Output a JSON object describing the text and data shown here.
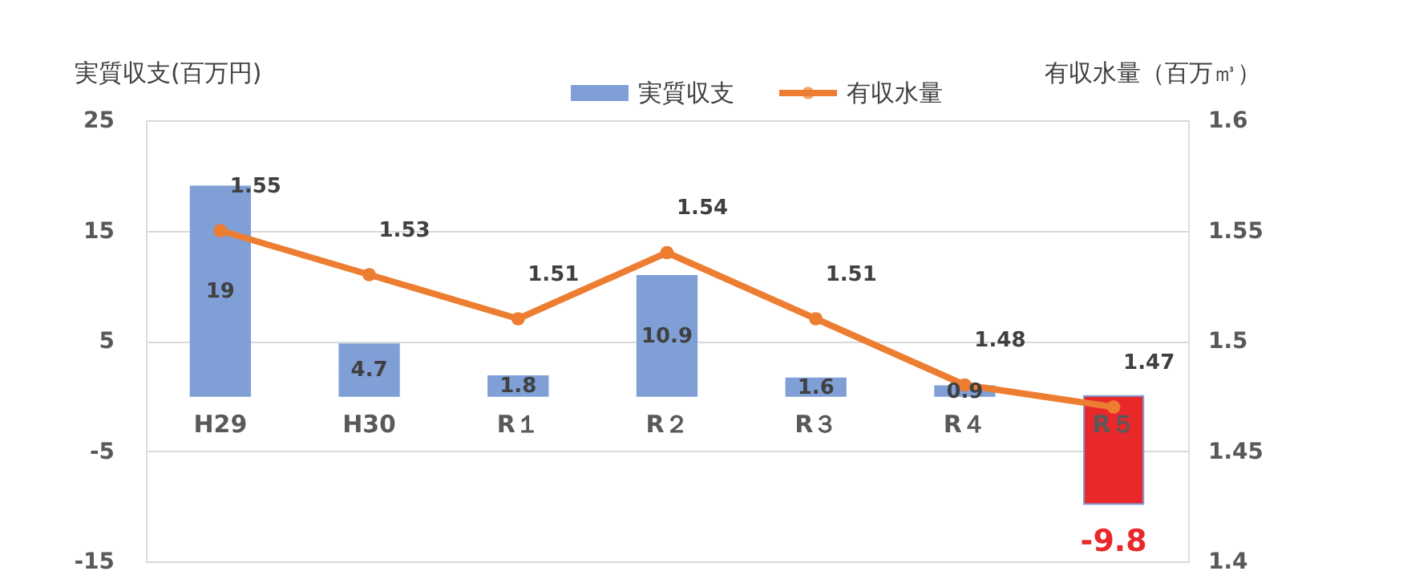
{
  "chart_data": {
    "type": "bar",
    "categories": [
      "H29",
      "H30",
      "R１",
      "R２",
      "R３",
      "R４",
      "R５"
    ],
    "ylabel": "実質収支(百万円)",
    "y2label": "有収水量（百万㎥）",
    "series": [
      {
        "name": "実質収支",
        "color": "#7f9fd6",
        "colors": [
          "#7f9fd6",
          "#7f9fd6",
          "#7f9fd6",
          "#7f9fd6",
          "#7f9fd6",
          "#7f9fd6",
          "#e8282b"
        ],
        "values": [
          19,
          4.7,
          1.8,
          10.9,
          1.6,
          0.9,
          -9.8
        ]
      },
      {
        "name": "有収水量",
        "type": "line",
        "axis": "y2",
        "color": "#ed7d31",
        "marker": "circle",
        "values": [
          1.55,
          1.53,
          1.51,
          1.54,
          1.51,
          1.48,
          1.47
        ]
      }
    ],
    "ylim": [
      -15,
      25
    ],
    "yticks": [
      -15,
      -5,
      5,
      15,
      25
    ],
    "y2lim": [
      1.4,
      1.6
    ],
    "y2ticks": [
      1.4,
      1.45,
      1.5,
      1.55,
      1.6
    ],
    "grid": "y",
    "legend": "top",
    "data_labels": true
  }
}
